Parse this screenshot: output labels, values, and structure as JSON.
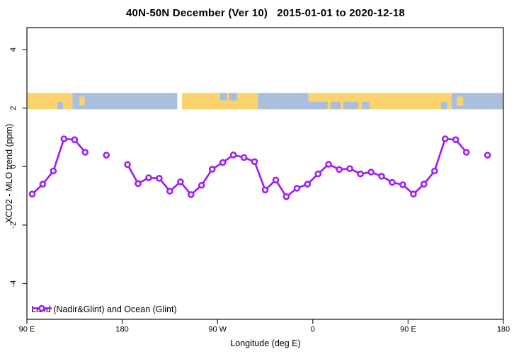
{
  "title": "40N-50N December (Ver 10)   2015-01-01 to 2020-12-18",
  "chart_data": {
    "type": "line",
    "title": "40N-50N December (Ver 10)   2015-01-01 to 2020-12-18",
    "xlabel": "Longitude (deg E)",
    "ylabel": "XCO2 - MLO trend (ppm)",
    "xlim": [
      90,
      540
    ],
    "ylim": [
      -5.2,
      4.75
    ],
    "grid": false,
    "x_ticks": [
      {
        "value": 90,
        "label": "90 E"
      },
      {
        "value": 180,
        "label": "180"
      },
      {
        "value": 270,
        "label": "90 W"
      },
      {
        "value": 360,
        "label": "0"
      },
      {
        "value": 450,
        "label": "90 E"
      },
      {
        "value": 540,
        "label": "180"
      }
    ],
    "y_ticks": [
      {
        "value": 4,
        "label": "4"
      },
      {
        "value": 2,
        "label": "2"
      },
      {
        "value": 0,
        "label": "0"
      },
      {
        "value": -2,
        "label": "-2"
      },
      {
        "value": -4,
        "label": "-4"
      }
    ],
    "legend": {
      "label": "Land (Nadir&Glint) and Ocean (Glint)",
      "position": "bottom-left"
    },
    "series": [
      {
        "name": "Land (Nadir&Glint) and Ocean (Glint)",
        "color": "#A020F0",
        "marker": "open-circle",
        "segments": [
          [
            [
              95,
              -0.94
            ],
            [
              105,
              -0.6
            ],
            [
              115,
              -0.15
            ],
            [
              125,
              0.95
            ],
            [
              135,
              0.92
            ],
            [
              145,
              0.49
            ]
          ],
          [
            [
              165,
              0.39
            ]
          ],
          [
            [
              185,
              0.07
            ],
            [
              195,
              -0.58
            ],
            [
              205,
              -0.38
            ],
            [
              215,
              -0.4
            ],
            [
              225,
              -0.84
            ],
            [
              235,
              -0.52
            ],
            [
              245,
              -0.96
            ],
            [
              255,
              -0.64
            ],
            [
              265,
              -0.09
            ],
            [
              275,
              0.14
            ],
            [
              285,
              0.4
            ],
            [
              295,
              0.31
            ],
            [
              305,
              0.17
            ],
            [
              315,
              -0.8
            ],
            [
              325,
              -0.46
            ],
            [
              335,
              -1.03
            ],
            [
              345,
              -0.74
            ],
            [
              355,
              -0.6
            ],
            [
              365,
              -0.25
            ],
            [
              375,
              0.08
            ],
            [
              385,
              -0.1
            ],
            [
              395,
              -0.07
            ],
            [
              405,
              -0.25
            ],
            [
              415,
              -0.19
            ],
            [
              425,
              -0.33
            ],
            [
              435,
              -0.54
            ],
            [
              445,
              -0.62
            ],
            [
              455,
              -0.94
            ],
            [
              465,
              -0.6
            ],
            [
              475,
              -0.15
            ],
            [
              485,
              0.95
            ],
            [
              495,
              0.92
            ],
            [
              505,
              0.49
            ]
          ],
          [
            [
              525,
              0.39
            ]
          ]
        ]
      }
    ],
    "map_strip": {
      "description": "world-map-band-40N-50N",
      "land_color": "#FBD36E",
      "ocean_color": "#A9BFDC",
      "gap_color": "#FFFFFF",
      "y_range": [
        1.96,
        2.52
      ],
      "base_segments": [
        {
          "from": 90,
          "to": 133,
          "type": "land"
        },
        {
          "from": 133,
          "to": 232,
          "type": "ocean"
        },
        {
          "from": 232,
          "to": 236.5,
          "type": "gap"
        },
        {
          "from": 236.5,
          "to": 308,
          "type": "land"
        },
        {
          "from": 308,
          "to": 356,
          "type": "ocean"
        },
        {
          "from": 356,
          "to": 491,
          "type": "land"
        },
        {
          "from": 491,
          "to": 540,
          "type": "ocean"
        }
      ],
      "flecks": [
        {
          "from": 119,
          "to": 124,
          "band": "bottom",
          "type": "ocean"
        },
        {
          "from": 139.5,
          "to": 144.5,
          "band": "mid",
          "type": "land"
        },
        {
          "from": 272.5,
          "to": 279,
          "band": "top",
          "type": "ocean"
        },
        {
          "from": 281,
          "to": 288.5,
          "band": "top",
          "type": "ocean"
        },
        {
          "from": 354,
          "to": 374,
          "band": "bottom",
          "type": "ocean"
        },
        {
          "from": 377,
          "to": 386,
          "band": "bottom",
          "type": "ocean"
        },
        {
          "from": 389,
          "to": 403,
          "band": "bottom",
          "type": "ocean"
        },
        {
          "from": 406.5,
          "to": 413.5,
          "band": "bottom",
          "type": "ocean"
        },
        {
          "from": 481,
          "to": 487,
          "band": "bottom",
          "type": "ocean"
        },
        {
          "from": 496,
          "to": 502,
          "band": "mid",
          "type": "land"
        }
      ]
    },
    "axis_color": "#333333"
  }
}
